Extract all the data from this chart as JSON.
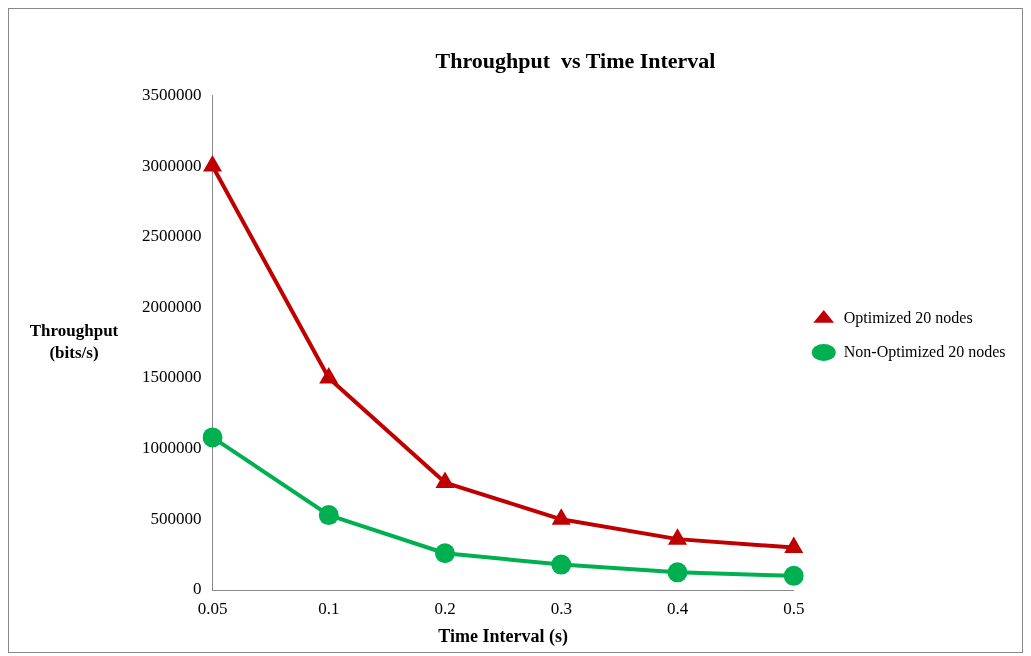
{
  "chart_data": {
    "type": "line",
    "title": "Throughput  vs Time Interval",
    "xlabel": "Time Interval (s)",
    "ylabel": "Throughput (bits/s)",
    "categories": [
      "0.05",
      "0.1",
      "0.2",
      "0.3",
      "0.4",
      "0.5"
    ],
    "series": [
      {
        "name": "Optimized 20 nodes",
        "color": "#c00000",
        "marker": "triangle",
        "values": [
          3000000,
          1500000,
          760000,
          500000,
          360000,
          300000
        ]
      },
      {
        "name": "Non-Optimized 20 nodes",
        "color": "#00b050",
        "marker": "circle",
        "values": [
          1080000,
          530000,
          260000,
          180000,
          125000,
          100000
        ]
      }
    ],
    "ylim": [
      0,
      3500000
    ],
    "yticks": [
      0,
      500000,
      1000000,
      1500000,
      2000000,
      2500000,
      3000000,
      3500000
    ],
    "grid": false,
    "legend": "right",
    "line_style": "solid"
  }
}
